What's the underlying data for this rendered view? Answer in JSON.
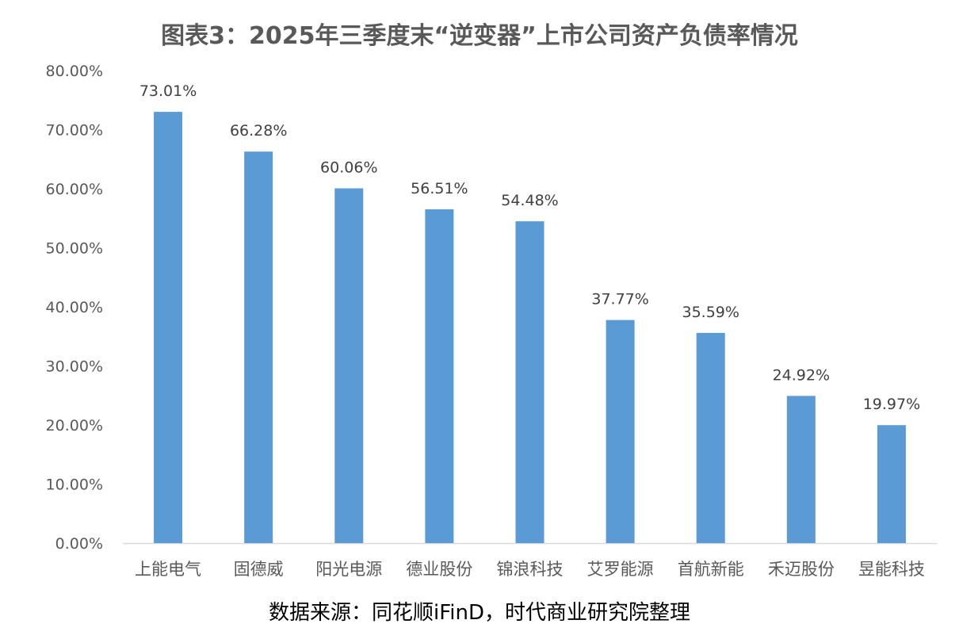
{
  "chart_data": {
    "type": "bar",
    "title": "图表3：2025年三季度末“逆变器”上市公司资产负债率情况",
    "categories": [
      "上能电气",
      "固德威",
      "阳光电源",
      "德业股份",
      "锦浪科技",
      "艾罗能源",
      "首航新能",
      "禾迈股份",
      "昱能科技"
    ],
    "values": [
      73.01,
      66.28,
      60.06,
      56.51,
      54.48,
      37.77,
      35.59,
      24.92,
      19.97
    ],
    "data_labels": [
      "73.01%",
      "66.28%",
      "60.06%",
      "56.51%",
      "54.48%",
      "37.77%",
      "35.59%",
      "24.92%",
      "19.97%"
    ],
    "y_ticks": [
      "0.00%",
      "10.00%",
      "20.00%",
      "30.00%",
      "40.00%",
      "50.00%",
      "60.00%",
      "70.00%",
      "80.00%"
    ],
    "ylim": [
      0,
      80
    ],
    "xlabel": "",
    "ylabel": "",
    "grid": false,
    "legend": "none",
    "bar_color": "#5B9BD5"
  },
  "source": "数据来源：同花顺iFinD，时代商业研究院整理"
}
